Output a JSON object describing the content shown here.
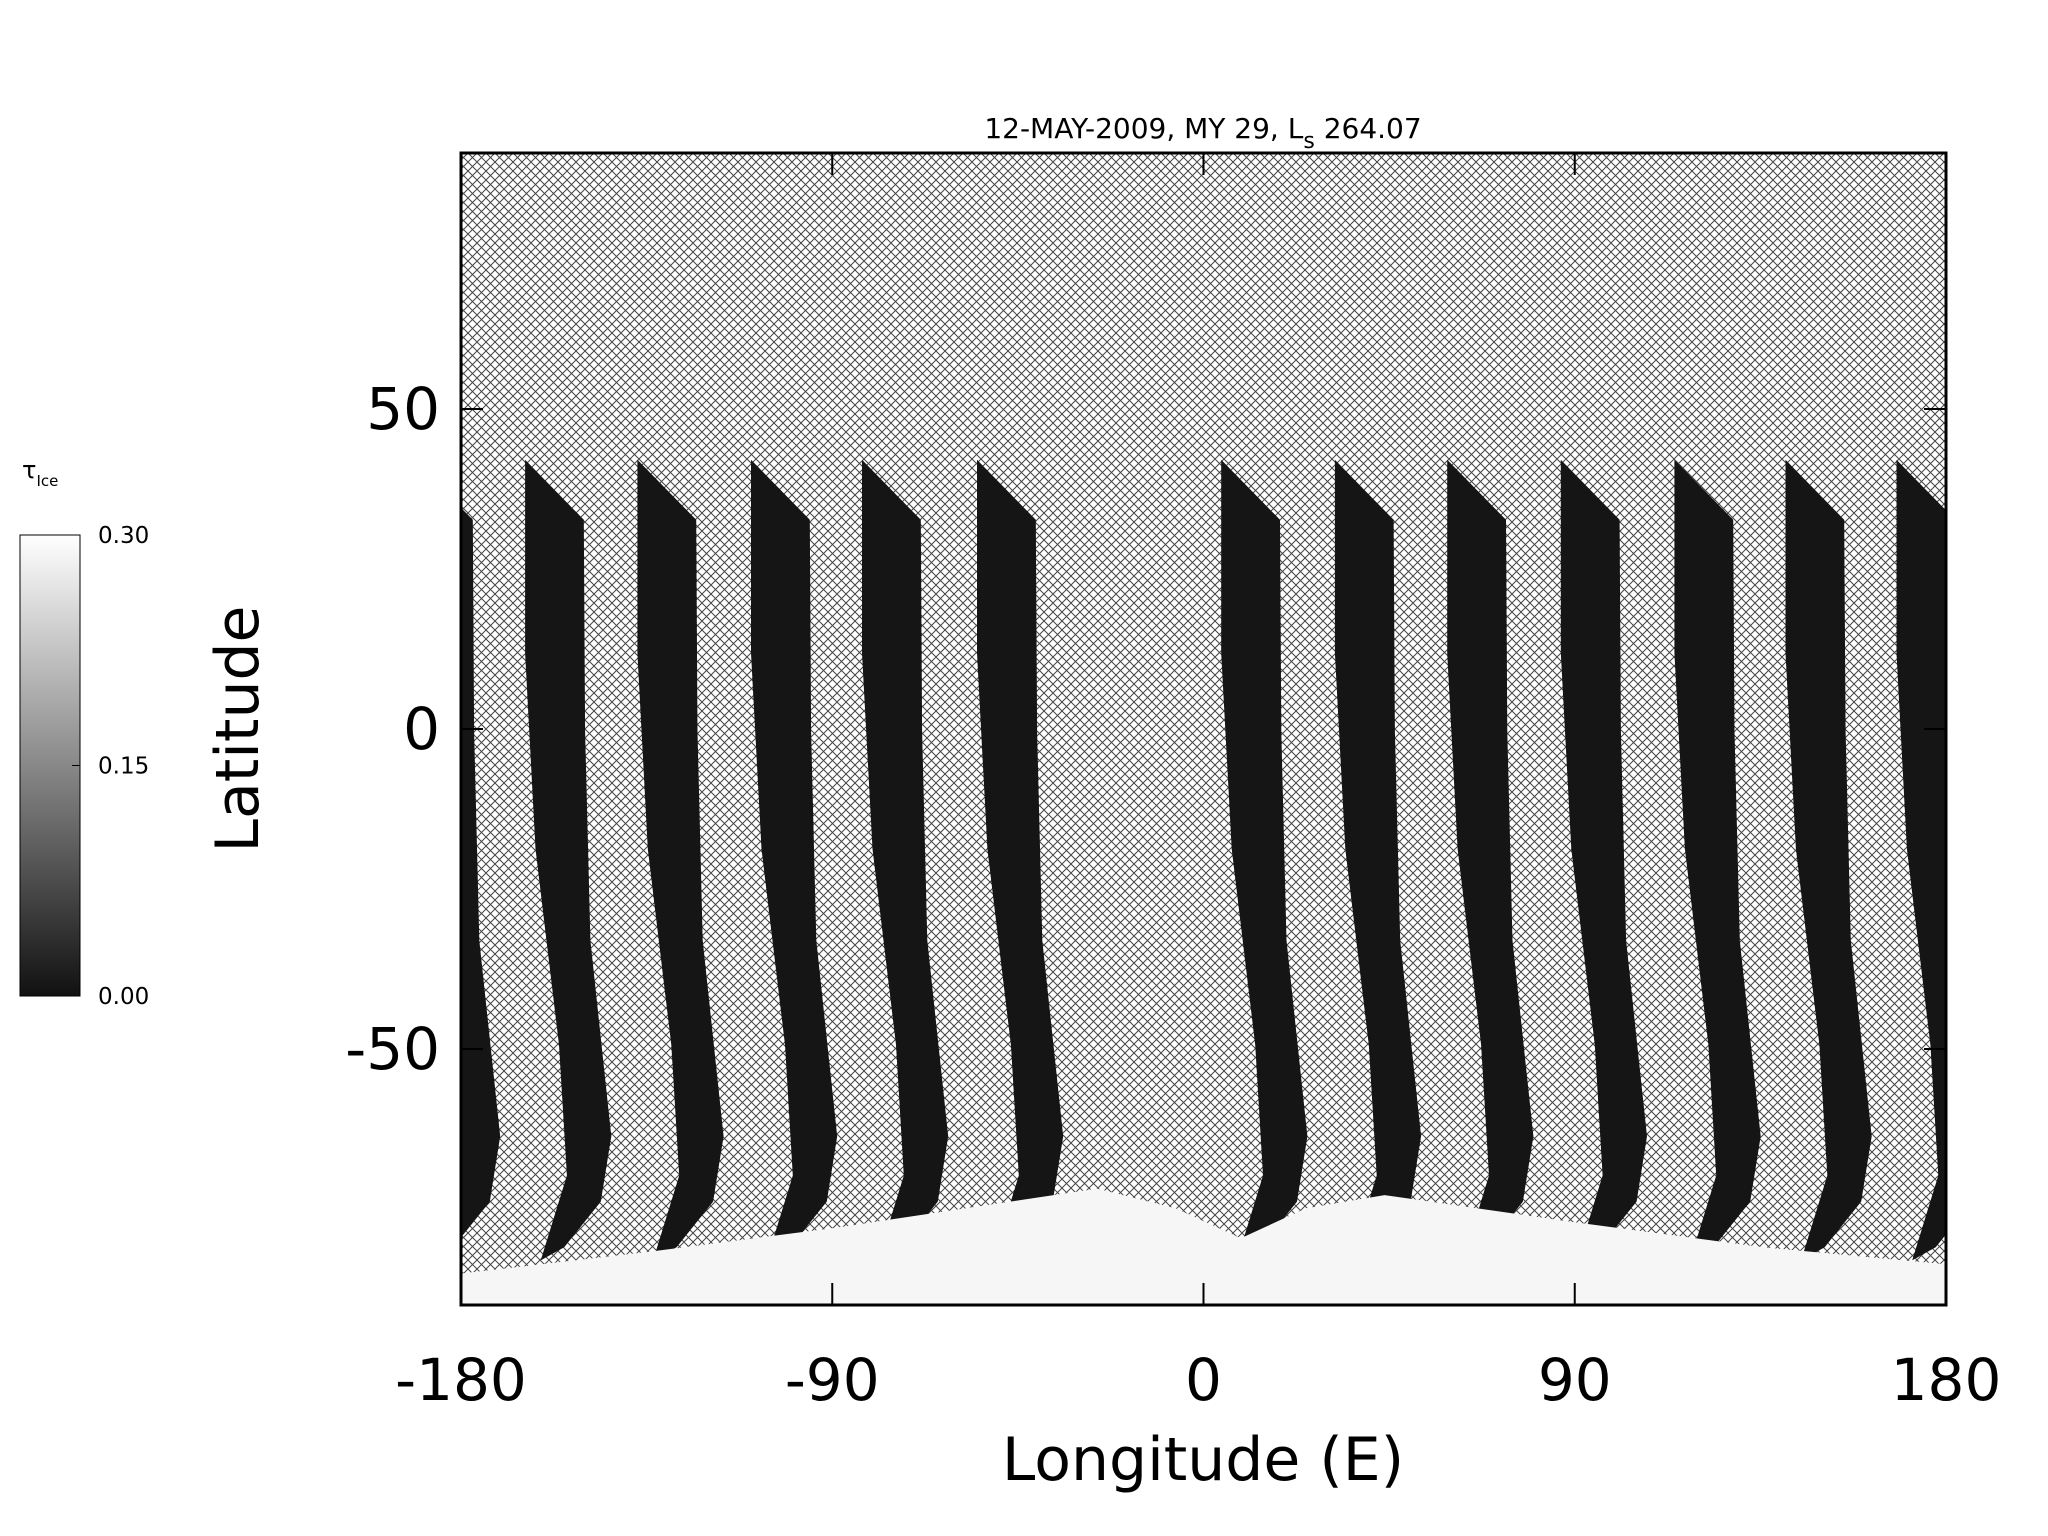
{
  "chart_data": {
    "type": "map",
    "title": "12-MAY-2009, MY 29,  L",
    "title_subscript": "s",
    "title_suffix": " 264.07",
    "x_label": "Longitude (E)",
    "y_label": "Latitude",
    "xlim": [
      -180,
      180
    ],
    "xticks": [
      -180,
      -90,
      0,
      90,
      180
    ],
    "ylim": [
      -90,
      90
    ],
    "yticks": [
      -50,
      0,
      50
    ],
    "colorbar_label": "τ",
    "colorbar_label_subscript": "Ice",
    "colorbar_lim": [
      0,
      0.3
    ],
    "colorbar_ticks": [
      {
        "value": 0,
        "label": "0.00"
      },
      {
        "value": 0.15,
        "label": "0.15"
      },
      {
        "value": 0.3,
        "label": "0.30"
      }
    ],
    "colormap": [
      "#111111",
      "#ffffff"
    ]
  }
}
